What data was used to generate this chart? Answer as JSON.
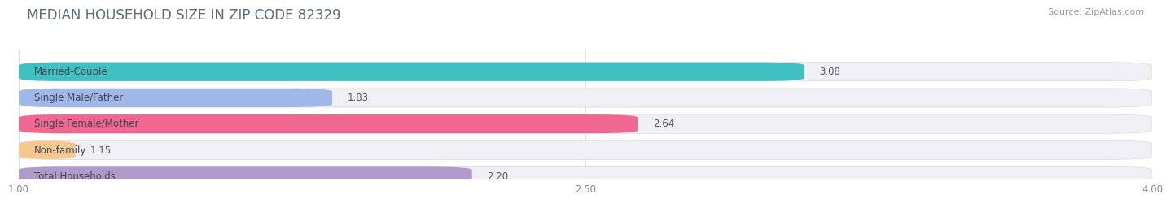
{
  "title": "MEDIAN HOUSEHOLD SIZE IN ZIP CODE 82329",
  "source": "Source: ZipAtlas.com",
  "categories": [
    "Married-Couple",
    "Single Male/Father",
    "Single Female/Mother",
    "Non-family",
    "Total Households"
  ],
  "values": [
    3.08,
    1.83,
    2.64,
    1.15,
    2.2
  ],
  "bar_colors": [
    "#40c0c0",
    "#9fb8e8",
    "#f06890",
    "#f5c890",
    "#b09aca"
  ],
  "bar_bg_color": "#f0f0f4",
  "xmin": 1.0,
  "xmax": 4.0,
  "xticks": [
    1.0,
    2.5,
    4.0
  ],
  "label_fontsize": 8.5,
  "value_fontsize": 8.5,
  "title_fontsize": 12,
  "source_fontsize": 8,
  "title_color": "#5a6a7a",
  "label_color": "#555555",
  "value_color": "#555555",
  "tick_color": "#888888",
  "bg_color": "#ffffff",
  "grid_color": "#dddddd"
}
